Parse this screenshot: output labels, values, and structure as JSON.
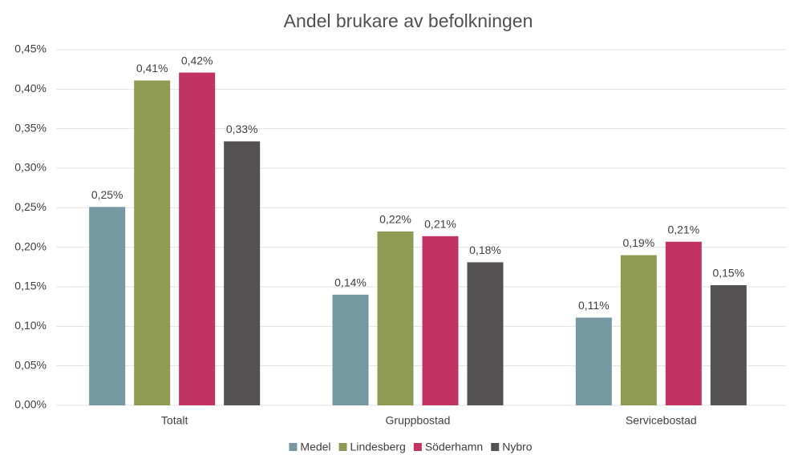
{
  "chart_data": {
    "type": "bar",
    "title": "Andel brukare av befolkningen",
    "categories": [
      "Totalt",
      "Gruppbostad",
      "Servicebostad"
    ],
    "series": [
      {
        "name": "Medel",
        "color": "#7598a1",
        "values": [
          0.251,
          0.14,
          0.111
        ],
        "value_labels": [
          "0,25%",
          "0,14%",
          "0,11%"
        ]
      },
      {
        "name": "Lindesberg",
        "color": "#8f9a52",
        "values": [
          0.411,
          0.22,
          0.19
        ],
        "value_labels": [
          "0,41%",
          "0,22%",
          "0,19%"
        ]
      },
      {
        "name": "Söderhamn",
        "color": "#c03363",
        "values": [
          0.421,
          0.214,
          0.207
        ],
        "value_labels": [
          "0,42%",
          "0,21%",
          "0,21%"
        ]
      },
      {
        "name": "Nybro",
        "color": "#545152",
        "values": [
          0.334,
          0.181,
          0.152
        ],
        "value_labels": [
          "0,33%",
          "0,18%",
          "0,15%"
        ]
      }
    ],
    "ylim": [
      0,
      0.45
    ],
    "yticks": [
      {
        "value": 0,
        "label": "0,00%"
      },
      {
        "value": 0.05,
        "label": "0,05%"
      },
      {
        "value": 0.1,
        "label": "0,10%"
      },
      {
        "value": 0.15,
        "label": "0,15%"
      },
      {
        "value": 0.2,
        "label": "0,20%"
      },
      {
        "value": 0.25,
        "label": "0,25%"
      },
      {
        "value": 0.3,
        "label": "0,30%"
      },
      {
        "value": 0.35,
        "label": "0,35%"
      },
      {
        "value": 0.4,
        "label": "0,40%"
      },
      {
        "value": 0.45,
        "label": "0,45%"
      }
    ],
    "grid": true,
    "legend": "bottom"
  }
}
